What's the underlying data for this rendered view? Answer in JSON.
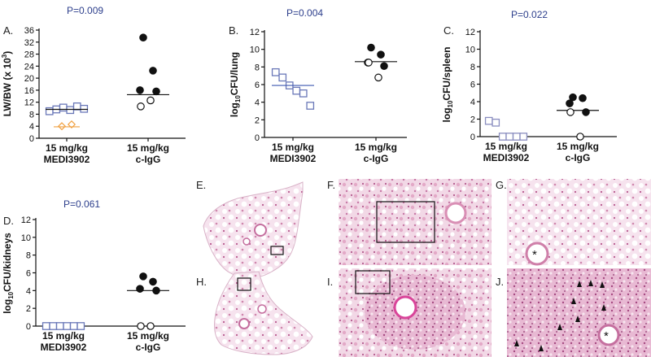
{
  "figure": {
    "histology_labels": [
      "E.",
      "F.",
      "G.",
      "H.",
      "I.",
      "J."
    ]
  },
  "chart_data": [
    {
      "type": "scatter",
      "panel": "A.",
      "ylabel": "LW/BW (x 10^3)",
      "ylabel_parts": [
        "LW/BW (x 10",
        "3",
        ")"
      ],
      "p_value": "P=0.009",
      "ylim": [
        0,
        36
      ],
      "yticks": [
        0,
        4,
        8,
        12,
        16,
        20,
        24,
        28,
        32,
        36
      ],
      "categories": [
        {
          "dose": "15 mg/kg",
          "name": "MEDI3902"
        },
        {
          "dose": "15 mg/kg",
          "name": "c-IgG"
        }
      ],
      "series": [
        {
          "category": 0,
          "marker": "diamond",
          "color": "#f0a040",
          "fill": "none",
          "values": [
            4.0,
            4.6
          ],
          "median": 3.8,
          "median_color": "#f0a040"
        },
        {
          "category": 0,
          "marker": "square",
          "color": "#6a78b8",
          "fill": "none",
          "values": [
            9.0,
            9.6,
            10.2,
            9.4,
            10.6,
            9.8
          ],
          "median": 9.6,
          "median_color": "#111111"
        },
        {
          "category": 1,
          "marker": "circle",
          "color": "#111111",
          "fill": "#111111",
          "values": [
            33.5,
            22.5,
            16.0,
            15.6
          ],
          "median": 14.5,
          "median_color": "#111111"
        },
        {
          "category": 1,
          "marker": "circle",
          "color": "#111111",
          "fill": "#ffffff",
          "values": [
            10.6,
            12.6
          ],
          "median": null,
          "median_color": "#111111"
        }
      ]
    },
    {
      "type": "scatter",
      "panel": "B.",
      "ylabel": "log10CFU/lung",
      "ylabel_parts": [
        "log",
        "10",
        "CFU/lung"
      ],
      "p_value": "P=0.004",
      "ylim": [
        0,
        12
      ],
      "yticks": [
        0,
        2,
        4,
        6,
        8,
        10,
        12
      ],
      "categories": [
        {
          "dose": "15 mg/kg",
          "name": "MEDI3902"
        },
        {
          "dose": "15 mg/kg",
          "name": "c-IgG"
        }
      ],
      "series": [
        {
          "category": 0,
          "marker": "square",
          "color": "#6a78b8",
          "fill": "none",
          "values": [
            7.4,
            6.8,
            5.9,
            5.3,
            5.0,
            3.6
          ],
          "median": 5.9,
          "median_color": "#3f58b0"
        },
        {
          "category": 1,
          "marker": "circle",
          "color": "#111111",
          "fill": "#111111",
          "values": [
            10.2,
            9.4,
            8.5,
            8.1
          ],
          "median": 8.6,
          "median_color": "#111111"
        },
        {
          "category": 1,
          "marker": "circle",
          "color": "#111111",
          "fill": "#ffffff",
          "values": [
            8.5,
            6.8
          ],
          "median": null,
          "median_color": "#111111"
        }
      ]
    },
    {
      "type": "scatter",
      "panel": "C.",
      "ylabel": "log10CFU/spleen",
      "ylabel_parts": [
        "log",
        "10",
        "CFU/spleen"
      ],
      "p_value": "P=0.022",
      "ylim": [
        0,
        12
      ],
      "yticks": [
        0,
        2,
        4,
        6,
        8,
        10,
        12
      ],
      "categories": [
        {
          "dose": "15 mg/kg",
          "name": "MEDI3902"
        },
        {
          "dose": "15 mg/kg",
          "name": "c-IgG"
        }
      ],
      "series": [
        {
          "category": 0,
          "marker": "square",
          "color": "#8a8ec0",
          "fill": "none",
          "values": [
            1.8,
            1.6,
            0,
            0,
            0,
            0
          ],
          "median": null,
          "median_color": "#111111"
        },
        {
          "category": 1,
          "marker": "circle",
          "color": "#111111",
          "fill": "#111111",
          "values": [
            4.5,
            4.4,
            3.8,
            2.8
          ],
          "median": 3.0,
          "median_color": "#111111"
        },
        {
          "category": 1,
          "marker": "circle",
          "color": "#111111",
          "fill": "#ffffff",
          "values": [
            2.8,
            0
          ],
          "median": null,
          "median_color": "#111111"
        }
      ]
    },
    {
      "type": "scatter",
      "panel": "D.",
      "ylabel": "log10CFU/kidneys",
      "ylabel_parts": [
        "log",
        "10",
        "CFU/kidneys"
      ],
      "p_value": "P=0.061",
      "ylim": [
        0,
        12
      ],
      "yticks": [
        0,
        2,
        4,
        6,
        8,
        10,
        12
      ],
      "categories": [
        {
          "dose": "15 mg/kg",
          "name": "MEDI3902"
        },
        {
          "dose": "15 mg/kg",
          "name": "c-IgG"
        }
      ],
      "series": [
        {
          "category": 0,
          "marker": "square",
          "color": "#6a78b8",
          "fill": "none",
          "values": [
            0,
            0,
            0,
            0,
            0,
            0
          ],
          "median": null,
          "median_color": "#111111"
        },
        {
          "category": 1,
          "marker": "circle",
          "color": "#111111",
          "fill": "#111111",
          "values": [
            5.6,
            5.0,
            4.2,
            4.0
          ],
          "median": 4.0,
          "median_color": "#111111"
        },
        {
          "category": 1,
          "marker": "circle",
          "color": "#111111",
          "fill": "#ffffff",
          "values": [
            0,
            0
          ],
          "median": null,
          "median_color": "#111111"
        }
      ]
    }
  ]
}
